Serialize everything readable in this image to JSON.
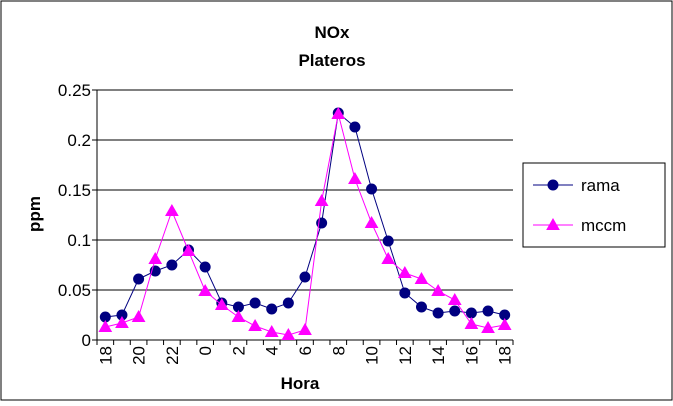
{
  "chart_data": {
    "type": "line",
    "title": "NOx",
    "subtitle": "Plateros",
    "xlabel": "Hora",
    "ylabel": "ppm",
    "categories": [
      "18",
      "19",
      "20",
      "21",
      "22",
      "23",
      "0",
      "1",
      "2",
      "3",
      "4",
      "5",
      "6",
      "7",
      "8",
      "9",
      "10",
      "11",
      "12",
      "13",
      "14",
      "15",
      "16",
      "17",
      "18"
    ],
    "x_tick_labels": [
      "18",
      "20",
      "22",
      "0",
      "2",
      "4",
      "6",
      "8",
      "10",
      "12",
      "14",
      "16",
      "18"
    ],
    "y_ticks": [
      "0",
      "0.05",
      "0.1",
      "0.15",
      "0.2",
      "0.25"
    ],
    "ylim": [
      0,
      0.25
    ],
    "grid": true,
    "legend_position": "right",
    "series": [
      {
        "name": "rama",
        "color": "#000080",
        "marker": "circle",
        "values": [
          0.023,
          0.025,
          0.061,
          0.069,
          0.075,
          0.09,
          0.073,
          0.037,
          0.033,
          0.037,
          0.031,
          0.037,
          0.063,
          0.117,
          0.227,
          0.213,
          0.151,
          0.099,
          0.047,
          0.033,
          0.027,
          0.029,
          0.027,
          0.029,
          0.025
        ]
      },
      {
        "name": "mccm",
        "color": "#ff00ff",
        "marker": "triangle",
        "values": [
          0.013,
          0.017,
          0.023,
          0.081,
          0.129,
          0.089,
          0.049,
          0.035,
          0.023,
          0.014,
          0.008,
          0.005,
          0.01,
          0.139,
          0.226,
          0.161,
          0.117,
          0.081,
          0.067,
          0.061,
          0.049,
          0.04,
          0.016,
          0.012,
          0.015
        ]
      }
    ]
  }
}
